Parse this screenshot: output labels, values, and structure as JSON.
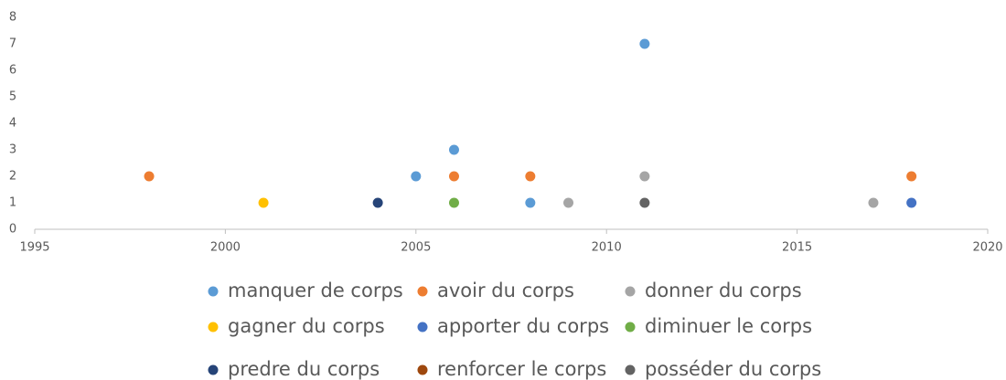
{
  "chart_data": {
    "type": "scatter",
    "xlim": [
      1995,
      2020
    ],
    "xticks": [
      1995,
      2000,
      2005,
      2010,
      2015,
      2020
    ],
    "ylim": [
      0,
      8
    ],
    "yticks": [
      0,
      1,
      2,
      3,
      4,
      5,
      6,
      7,
      8
    ],
    "grid": false,
    "legend": "bottom",
    "series": [
      {
        "name": "manquer de corps",
        "color": "#5b9bd5",
        "x": [
          2011,
          2006,
          2005,
          2008
        ],
        "values": [
          7,
          3,
          2,
          1
        ]
      },
      {
        "name": "avoir du corps",
        "color": "#ed7d31",
        "x": [
          1998,
          2006,
          2008,
          2018
        ],
        "values": [
          2,
          2,
          2,
          2
        ]
      },
      {
        "name": "donner du corps",
        "color": "#a5a5a5",
        "x": [
          2011,
          2009,
          2017
        ],
        "values": [
          2,
          1,
          1
        ]
      },
      {
        "name": "gagner du corps",
        "color": "#ffc000",
        "x": [
          2001
        ],
        "values": [
          1
        ]
      },
      {
        "name": "apporter du corps",
        "color": "#4472c4",
        "x": [
          2018
        ],
        "values": [
          1
        ]
      },
      {
        "name": "diminuer le corps",
        "color": "#70ad47",
        "x": [
          2006
        ],
        "values": [
          1
        ]
      },
      {
        "name": "predre du corps",
        "color": "#264478",
        "x": [
          2004
        ],
        "values": [
          1
        ]
      },
      {
        "name": "renforcer le corps",
        "color": "#9e480e",
        "x": [],
        "values": []
      },
      {
        "name": "posséder du corps",
        "color": "#636363",
        "x": [
          2011
        ],
        "values": [
          1
        ]
      }
    ]
  }
}
